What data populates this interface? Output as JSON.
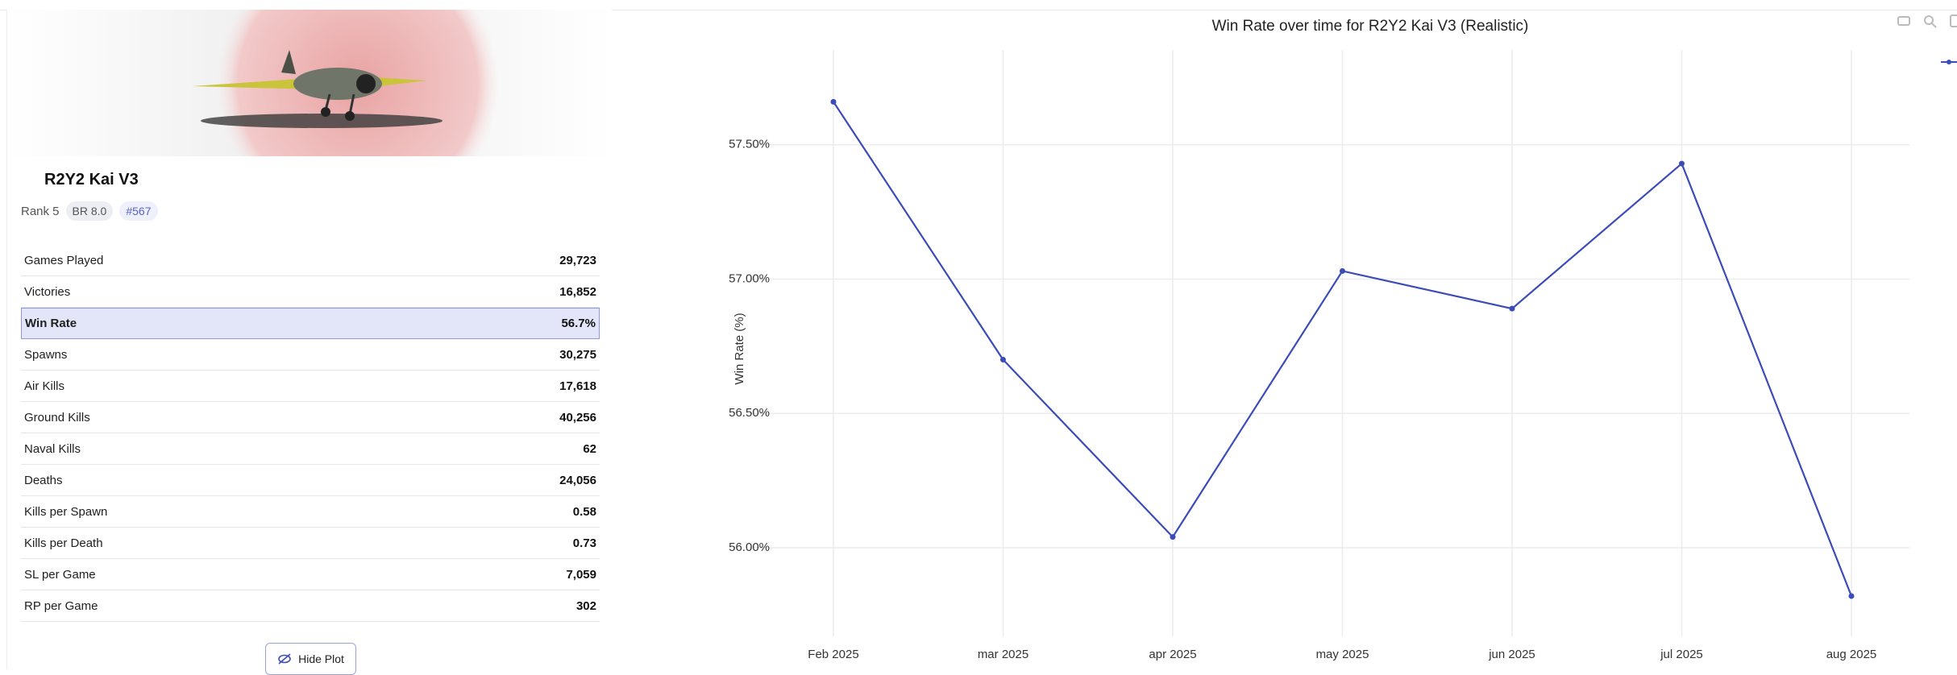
{
  "vehicle": {
    "name": "R2Y2 Kai V3",
    "rank": "Rank 5",
    "br": "BR 8.0",
    "id": "#567"
  },
  "stats": {
    "rows": [
      [
        "Games Played",
        "29,723"
      ],
      [
        "Victories",
        "16,852"
      ],
      [
        "Win Rate",
        "56.7%"
      ],
      [
        "Spawns",
        "30,275"
      ],
      [
        "Air Kills",
        "17,618"
      ],
      [
        "Ground Kills",
        "40,256"
      ],
      [
        "Naval Kills",
        "62"
      ],
      [
        "Deaths",
        "24,056"
      ],
      [
        "Kills per Spawn",
        "0.58"
      ],
      [
        "Kills per Death",
        "0.73"
      ],
      [
        "SL per Game",
        "7,059"
      ],
      [
        "RP per Game",
        "302"
      ]
    ],
    "highlight": 2
  },
  "button": "Hide Plot",
  "chart_data": {
    "type": "line",
    "title": "Win Rate over time for R2Y2 Kai V3 (Realistic)",
    "y_label": "Win Rate (%)",
    "categories": [
      "Feb 2025",
      "mar 2025",
      "apr 2025",
      "may 2025",
      "jun 2025",
      "jul 2025",
      "aug 2025"
    ],
    "values": [
      57.66,
      56.7,
      56.04,
      57.03,
      56.89,
      57.43,
      55.82
    ],
    "color": "#3b4cb8",
    "ylim": [
      55.67,
      57.853
    ],
    "yticks": [
      {
        "value": 56,
        "label": "56.00%"
      },
      {
        "value": 56.5,
        "label": "56.50%"
      },
      {
        "value": 57,
        "label": "57.00%"
      },
      {
        "value": 57.5,
        "label": "57.50%"
      }
    ],
    "grid": true
  }
}
